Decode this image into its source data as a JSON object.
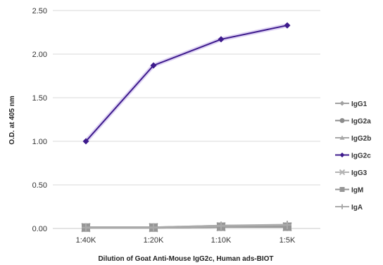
{
  "chart_data": {
    "type": "line",
    "title": "",
    "xlabel": "Dilution of Goat Anti-Mouse IgG2c, Human ads-BIOT",
    "ylabel": "O.D. at 405 nm",
    "categories": [
      "1:40K",
      "1:20K",
      "1:10K",
      "1:5K"
    ],
    "ylim": [
      0,
      2.5
    ],
    "yticks": [
      "0.00",
      "0.50",
      "1.00",
      "1.50",
      "2.00",
      "2.50"
    ],
    "grid": true,
    "legend_position": "right",
    "series": [
      {
        "name": "IgG1",
        "values": [
          0.01,
          0.01,
          0.02,
          0.02
        ],
        "color": "#a0a0a0",
        "marker": "diamond"
      },
      {
        "name": "IgG2a",
        "values": [
          0.01,
          0.01,
          0.02,
          0.02
        ],
        "color": "#8c8c8c",
        "marker": "circle"
      },
      {
        "name": "IgG2b",
        "values": [
          0.01,
          0.01,
          0.03,
          0.03
        ],
        "color": "#a8a8a8",
        "marker": "triangle"
      },
      {
        "name": "IgG2c",
        "values": [
          1.0,
          1.87,
          2.17,
          2.33
        ],
        "color": "#3d1a8c",
        "marker": "diamond"
      },
      {
        "name": "IgG3",
        "values": [
          0.01,
          0.01,
          0.02,
          0.02
        ],
        "color": "#b4b4b4",
        "marker": "x"
      },
      {
        "name": "IgM",
        "values": [
          0.01,
          0.01,
          0.02,
          0.02
        ],
        "color": "#969696",
        "marker": "square"
      },
      {
        "name": "IgA",
        "values": [
          0.01,
          0.01,
          0.03,
          0.04
        ],
        "color": "#aaaaaa",
        "marker": "plus"
      }
    ]
  }
}
